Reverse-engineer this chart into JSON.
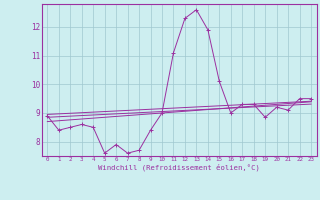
{
  "x": [
    0,
    1,
    2,
    3,
    4,
    5,
    6,
    7,
    8,
    9,
    10,
    11,
    12,
    13,
    14,
    15,
    16,
    17,
    18,
    19,
    20,
    21,
    22,
    23
  ],
  "y_main": [
    8.9,
    8.4,
    8.5,
    8.6,
    8.5,
    7.6,
    7.9,
    7.6,
    7.7,
    8.4,
    9.0,
    11.1,
    12.3,
    12.6,
    11.9,
    10.1,
    9.0,
    9.3,
    9.3,
    8.85,
    9.2,
    9.1,
    9.5,
    9.5
  ],
  "y_trend1": [
    8.85,
    8.87,
    8.89,
    8.91,
    8.93,
    8.95,
    8.97,
    8.99,
    9.01,
    9.03,
    9.05,
    9.07,
    9.09,
    9.11,
    9.13,
    9.15,
    9.17,
    9.19,
    9.21,
    9.23,
    9.25,
    9.27,
    9.29,
    9.31
  ],
  "y_trend2": [
    8.7,
    8.73,
    8.76,
    8.79,
    8.82,
    8.85,
    8.88,
    8.91,
    8.94,
    8.97,
    9.0,
    9.03,
    9.06,
    9.09,
    9.12,
    9.15,
    9.18,
    9.21,
    9.24,
    9.27,
    9.3,
    9.33,
    9.36,
    9.39
  ],
  "y_trend3": [
    8.95,
    8.97,
    8.99,
    9.01,
    9.03,
    9.05,
    9.07,
    9.09,
    9.11,
    9.13,
    9.15,
    9.17,
    9.19,
    9.21,
    9.23,
    9.25,
    9.27,
    9.29,
    9.31,
    9.33,
    9.35,
    9.37,
    9.39,
    9.41
  ],
  "line_color": "#9b30a0",
  "bg_color": "#cdeef0",
  "grid_color": "#a0c8d0",
  "xlabel": "Windchill (Refroidissement éolien,°C)",
  "xlim": [
    -0.5,
    23.5
  ],
  "ylim": [
    7.5,
    12.8
  ],
  "yticks": [
    8,
    9,
    10,
    11,
    12
  ],
  "xticks": [
    0,
    1,
    2,
    3,
    4,
    5,
    6,
    7,
    8,
    9,
    10,
    11,
    12,
    13,
    14,
    15,
    16,
    17,
    18,
    19,
    20,
    21,
    22,
    23
  ]
}
